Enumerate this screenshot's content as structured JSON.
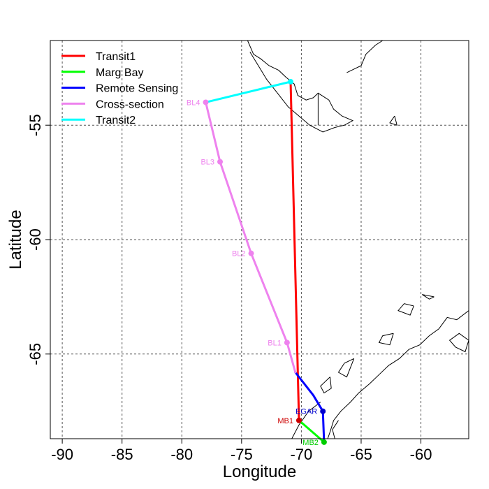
{
  "chart_data": {
    "type": "line",
    "xlabel": "Longitude",
    "ylabel": "Latitude",
    "xlim": [
      -91,
      -56
    ],
    "ylim": [
      -68.7,
      -51.3
    ],
    "x_ticks": [
      -90,
      -85,
      -80,
      -75,
      -70,
      -65,
      -60
    ],
    "y_ticks": [
      -55,
      -60,
      -65
    ],
    "x_tick_labels": [
      "-90",
      "-85",
      "-80",
      "-75",
      "-70",
      "-65",
      "-60"
    ],
    "y_tick_labels": [
      "-55",
      "-60",
      "-65"
    ],
    "grid": true,
    "legend_position": "top-left",
    "series": [
      {
        "name": "Transit1",
        "color": "#ff0000",
        "points": [
          [
            -70.9,
            -53.1
          ],
          [
            -70.2,
            -67.9
          ]
        ]
      },
      {
        "name": "Marg Bay",
        "color": "#00ff00",
        "points": [
          [
            -70.2,
            -67.9
          ],
          [
            -68.1,
            -68.85
          ]
        ]
      },
      {
        "name": "Remote Sensing",
        "color": "#0000ff",
        "points": [
          [
            -70.5,
            -65.8
          ],
          [
            -69.0,
            -66.8
          ],
          [
            -68.2,
            -67.5
          ],
          [
            -68.1,
            -68.85
          ]
        ]
      },
      {
        "name": "Cross-section",
        "color": "#ee82ee",
        "points": [
          [
            -78.0,
            -54.0
          ],
          [
            -76.8,
            -56.6
          ],
          [
            -74.2,
            -60.6
          ],
          [
            -71.2,
            -64.5
          ],
          [
            -70.5,
            -65.8
          ]
        ]
      },
      {
        "name": "Transit2",
        "color": "#00ffff",
        "points": [
          [
            -78.0,
            -54.0
          ],
          [
            -70.9,
            -53.1
          ]
        ]
      }
    ],
    "stations": [
      {
        "label": "BL4",
        "color": "#ee82ee",
        "x": -78.0,
        "y": -54.0
      },
      {
        "label": "BL3",
        "color": "#ee82ee",
        "x": -76.8,
        "y": -56.6
      },
      {
        "label": "BL2",
        "color": "#ee82ee",
        "x": -74.2,
        "y": -60.6
      },
      {
        "label": "BL1",
        "color": "#ee82ee",
        "x": -71.2,
        "y": -64.5
      },
      {
        "label": "EGAR",
        "color": "#0000cd",
        "x": -68.2,
        "y": -67.5
      },
      {
        "label": "MB1",
        "color": "#cd0000",
        "x": -70.2,
        "y": -67.9
      },
      {
        "label": "MB2",
        "color": "#00cd00",
        "x": -68.1,
        "y": -68.85
      },
      {
        "label": "",
        "color": "#00ffff",
        "x": -70.9,
        "y": -53.1
      }
    ]
  }
}
